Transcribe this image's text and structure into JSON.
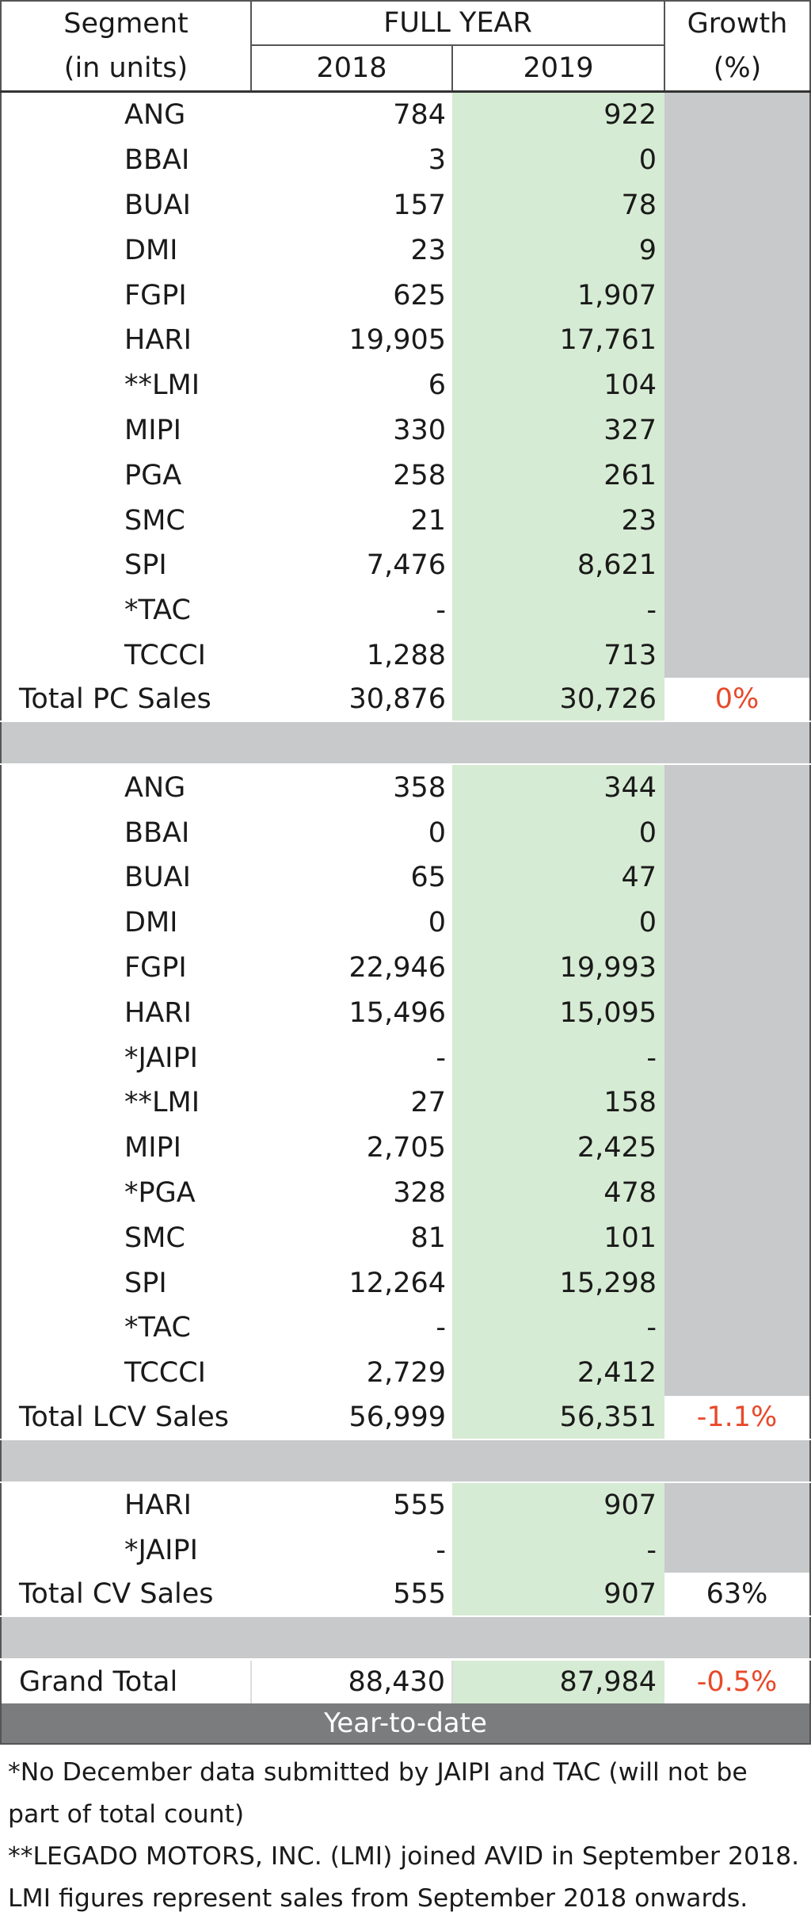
{
  "header": {
    "segment_line1": "Segment",
    "segment_line2": "(in units)",
    "full_year": "FULL YEAR",
    "year_a": "2018",
    "year_b": "2019",
    "growth_line1": "Growth",
    "growth_line2": "(%)"
  },
  "sections": [
    {
      "rows": [
        {
          "segment": "ANG",
          "y2018": "784",
          "y2019": "922"
        },
        {
          "segment": "BBAI",
          "y2018": "3",
          "y2019": "0"
        },
        {
          "segment": "BUAI",
          "y2018": "157",
          "y2019": "78"
        },
        {
          "segment": "DMI",
          "y2018": "23",
          "y2019": "9"
        },
        {
          "segment": "FGPI",
          "y2018": "625",
          "y2019": "1,907"
        },
        {
          "segment": "HARI",
          "y2018": "19,905",
          "y2019": "17,761"
        },
        {
          "segment": "**LMI",
          "y2018": "6",
          "y2019": "104"
        },
        {
          "segment": "MIPI",
          "y2018": "330",
          "y2019": "327"
        },
        {
          "segment": "PGA",
          "y2018": "258",
          "y2019": "261"
        },
        {
          "segment": "SMC",
          "y2018": "21",
          "y2019": "23"
        },
        {
          "segment": "SPI",
          "y2018": "7,476",
          "y2019": "8,621"
        },
        {
          "segment": "*TAC",
          "y2018": "-",
          "y2019": "-"
        },
        {
          "segment": "TCCCI",
          "y2018": "1,288",
          "y2019": "713"
        }
      ],
      "total": {
        "label": "Total PC Sales",
        "y2018": "30,876",
        "y2019": "30,726",
        "growth": "0%",
        "growth_color": "#e8492a"
      }
    },
    {
      "rows": [
        {
          "segment": "ANG",
          "y2018": "358",
          "y2019": "344"
        },
        {
          "segment": "BBAI",
          "y2018": "0",
          "y2019": "0"
        },
        {
          "segment": "BUAI",
          "y2018": "65",
          "y2019": "47"
        },
        {
          "segment": "DMI",
          "y2018": "0",
          "y2019": "0"
        },
        {
          "segment": "FGPI",
          "y2018": "22,946",
          "y2019": "19,993"
        },
        {
          "segment": "HARI",
          "y2018": "15,496",
          "y2019": "15,095"
        },
        {
          "segment": "*JAIPI",
          "y2018": "-",
          "y2019": "-"
        },
        {
          "segment": "**LMI",
          "y2018": "27",
          "y2019": "158"
        },
        {
          "segment": "MIPI",
          "y2018": "2,705",
          "y2019": "2,425"
        },
        {
          "segment": "*PGA",
          "y2018": "328",
          "y2019": "478"
        },
        {
          "segment": "SMC",
          "y2018": "81",
          "y2019": "101"
        },
        {
          "segment": "SPI",
          "y2018": "12,264",
          "y2019": "15,298"
        },
        {
          "segment": "*TAC",
          "y2018": "-",
          "y2019": "-"
        },
        {
          "segment": "TCCCI",
          "y2018": "2,729",
          "y2019": "2,412"
        }
      ],
      "total": {
        "label": "Total LCV Sales",
        "y2018": "56,999",
        "y2019": "56,351",
        "growth": "-1.1%",
        "growth_color": "#e8492a"
      }
    },
    {
      "rows": [
        {
          "segment": "HARI",
          "y2018": "555",
          "y2019": "907"
        },
        {
          "segment": "*JAIPI",
          "y2018": "-",
          "y2019": "-"
        }
      ],
      "total": {
        "label": "Total CV Sales",
        "y2018": "555",
        "y2019": "907",
        "growth": "63%",
        "growth_color": "#1a1a1a"
      }
    }
  ],
  "grand_total": {
    "label": "Grand Total",
    "y2018": "88,430",
    "y2019": "87,984",
    "growth": "-0.5%",
    "growth_color": "#e8492a"
  },
  "footer_band": "Year-to-date",
  "notes": [
    "*No December data submitted by JAIPI and TAC (will not be",
    "part of total count)",
    "**LEGADO MOTORS, INC. (LMI) joined AVID in September 2018.",
    "LMI figures represent sales from September 2018 onwards."
  ],
  "colors": {
    "green_col": "#d6ebd3",
    "grey_band": "#c8c9cb",
    "negative": "#e8492a",
    "ytd_band": "#7b7c7e"
  }
}
